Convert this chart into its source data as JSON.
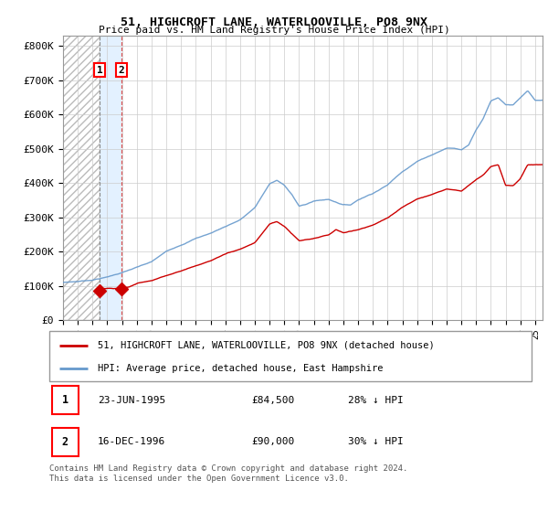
{
  "title1": "51, HIGHCROFT LANE, WATERLOOVILLE, PO8 9NX",
  "title2": "Price paid vs. HM Land Registry's House Price Index (HPI)",
  "ylabel_ticks": [
    "£0",
    "£100K",
    "£200K",
    "£300K",
    "£400K",
    "£500K",
    "£600K",
    "£700K",
    "£800K"
  ],
  "ytick_values": [
    0,
    100000,
    200000,
    300000,
    400000,
    500000,
    600000,
    700000,
    800000
  ],
  "ylim": [
    0,
    830000
  ],
  "xlim_start": 1993.0,
  "xlim_end": 2025.5,
  "transaction1": {
    "date_num": 1995.47,
    "price": 84500,
    "label": "1"
  },
  "transaction2": {
    "date_num": 1996.96,
    "price": 90000,
    "label": "2"
  },
  "legend_property_label": "51, HIGHCROFT LANE, WATERLOOVILLE, PO8 9NX (detached house)",
  "legend_hpi_label": "HPI: Average price, detached house, East Hampshire",
  "footer_text": "Contains HM Land Registry data © Crown copyright and database right 2024.\nThis data is licensed under the Open Government Licence v3.0.",
  "table_rows": [
    {
      "num": "1",
      "date": "23-JUN-1995",
      "price": "£84,500",
      "pct": "28% ↓ HPI"
    },
    {
      "num": "2",
      "date": "16-DEC-1996",
      "price": "£90,000",
      "pct": "30% ↓ HPI"
    }
  ],
  "property_color": "#cc0000",
  "hpi_color": "#6699cc",
  "grid_color": "#cccccc",
  "x_tick_years": [
    1993,
    1994,
    1995,
    1996,
    1997,
    1998,
    1999,
    2000,
    2001,
    2002,
    2003,
    2004,
    2005,
    2006,
    2007,
    2008,
    2009,
    2010,
    2011,
    2012,
    2013,
    2014,
    2015,
    2016,
    2017,
    2018,
    2019,
    2020,
    2021,
    2022,
    2023,
    2024,
    2025
  ],
  "hpi_knots_x": [
    1993,
    1994,
    1995,
    1996,
    1997,
    1998,
    1999,
    2000,
    2001,
    2002,
    2003,
    2004,
    2005,
    2006,
    2007,
    2007.5,
    2008,
    2008.5,
    2009,
    2009.5,
    2010,
    2011,
    2012,
    2012.5,
    2013,
    2014,
    2015,
    2016,
    2017,
    2018,
    2019,
    2019.5,
    2020,
    2020.5,
    2021,
    2021.5,
    2022,
    2022.5,
    2023,
    2023.5,
    2024,
    2024.5,
    2025
  ],
  "hpi_knots_y": [
    110000,
    113000,
    118000,
    127000,
    140000,
    155000,
    170000,
    200000,
    220000,
    240000,
    255000,
    275000,
    295000,
    330000,
    400000,
    410000,
    395000,
    370000,
    335000,
    340000,
    350000,
    355000,
    340000,
    340000,
    355000,
    375000,
    400000,
    440000,
    470000,
    490000,
    510000,
    510000,
    505000,
    520000,
    565000,
    600000,
    650000,
    660000,
    640000,
    640000,
    660000,
    680000,
    650000
  ],
  "prop_knots_x": [
    1996.96,
    1997.5,
    1998,
    1999,
    2000,
    2001,
    2002,
    2003,
    2003.5,
    2004,
    2005,
    2006,
    2007,
    2007.5,
    2008,
    2009,
    2010,
    2011,
    2011.5,
    2012,
    2013,
    2014,
    2015,
    2016,
    2017,
    2018,
    2019,
    2020,
    2021,
    2021.5,
    2022,
    2022.5,
    2023,
    2023.5,
    2024,
    2024.5,
    2025
  ],
  "prop_knots_y": [
    90000,
    95000,
    105000,
    115000,
    130000,
    145000,
    160000,
    175000,
    185000,
    195000,
    210000,
    230000,
    285000,
    292000,
    278000,
    235000,
    240000,
    250000,
    265000,
    256000,
    265000,
    280000,
    300000,
    330000,
    355000,
    370000,
    385000,
    380000,
    415000,
    430000,
    455000,
    460000,
    400000,
    400000,
    420000,
    460000,
    460000
  ]
}
